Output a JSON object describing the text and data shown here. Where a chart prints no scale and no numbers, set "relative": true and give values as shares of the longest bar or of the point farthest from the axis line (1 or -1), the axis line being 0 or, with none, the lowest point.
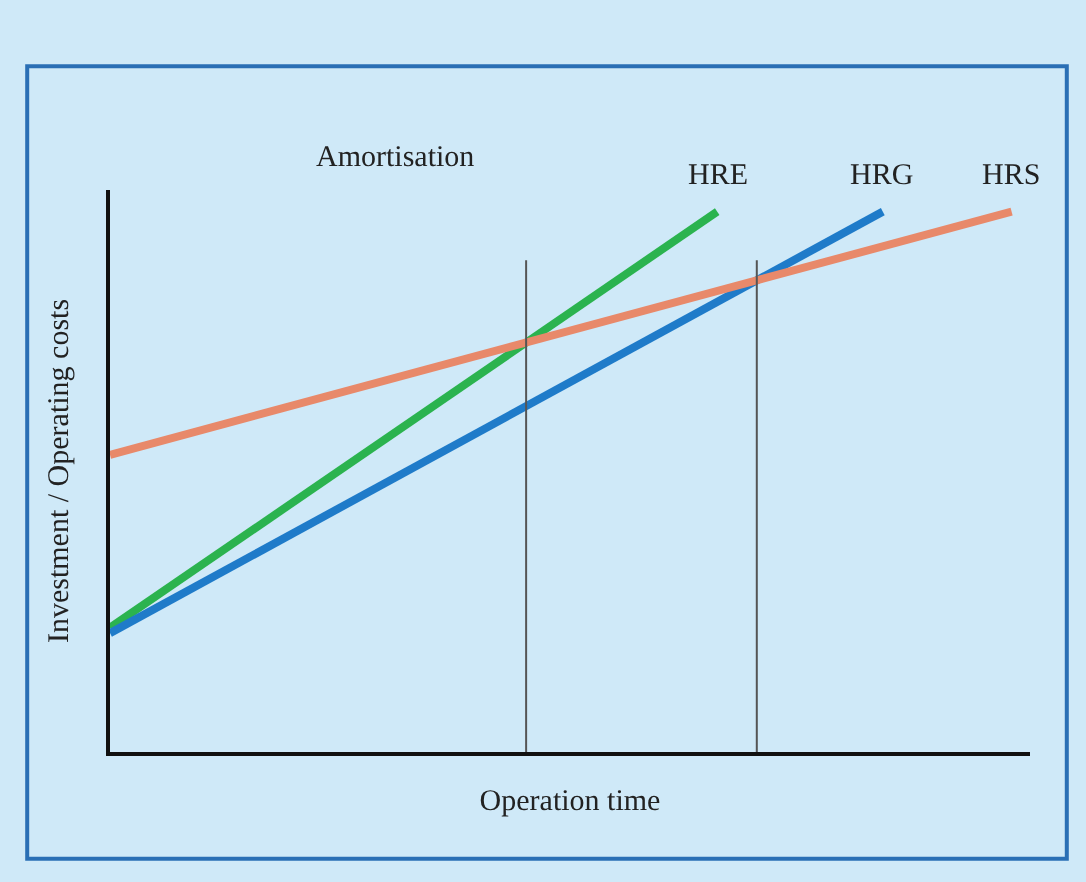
{
  "chart_data": {
    "type": "line",
    "relative": true,
    "xlabel": "Operation time",
    "ylabel": "Investment / Operating costs",
    "annotations": [
      "Amortisation"
    ],
    "grid": false,
    "legend": false,
    "marker": "none",
    "line_style": "solid",
    "categories": [
      null,
      null,
      null,
      null,
      null,
      null,
      null,
      null,
      null,
      null,
      null,
      null,
      null,
      null,
      null,
      null,
      null,
      null,
      null,
      null,
      null,
      null,
      null,
      null,
      null,
      null,
      null,
      null,
      null,
      null,
      null,
      null,
      null,
      null,
      null,
      null,
      null,
      null,
      null,
      null,
      null,
      null,
      null,
      null,
      null,
      null,
      null,
      null,
      null,
      null,
      null
    ],
    "series": [
      {
        "name": "HRE",
        "color": "#2bb34f",
        "values": [
          0.23,
          null,
          null,
          null,
          null,
          null,
          null,
          null,
          null,
          null,
          null,
          null,
          null,
          null,
          null,
          null,
          null,
          null,
          null,
          null,
          null,
          null,
          null,
          null,
          null,
          null,
          null,
          null,
          null,
          null,
          null,
          null,
          null,
          1,
          null,
          null,
          null,
          null,
          null,
          null,
          null,
          null,
          null,
          null,
          null,
          null,
          null,
          null,
          null,
          null,
          null
        ]
      },
      {
        "name": "HRG",
        "color": "#1f7bc9",
        "values": [
          0.22,
          null,
          null,
          null,
          null,
          null,
          null,
          null,
          null,
          null,
          null,
          null,
          null,
          null,
          null,
          null,
          null,
          null,
          null,
          null,
          null,
          null,
          null,
          null,
          null,
          null,
          null,
          null,
          null,
          null,
          null,
          null,
          null,
          null,
          null,
          null,
          null,
          null,
          null,
          null,
          null,
          null,
          1,
          null,
          null,
          null,
          null,
          null,
          null,
          null,
          null
        ]
      },
      {
        "name": "HRS",
        "color": "#e8896a",
        "values": [
          0.55,
          null,
          null,
          null,
          null,
          null,
          null,
          null,
          null,
          null,
          null,
          null,
          null,
          null,
          null,
          null,
          null,
          null,
          null,
          null,
          null,
          null,
          null,
          null,
          null,
          null,
          null,
          null,
          null,
          null,
          null,
          null,
          null,
          null,
          null,
          null,
          null,
          null,
          null,
          null,
          null,
          null,
          null,
          null,
          null,
          null,
          null,
          null,
          null,
          1,
          null
        ]
      }
    ]
  }
}
